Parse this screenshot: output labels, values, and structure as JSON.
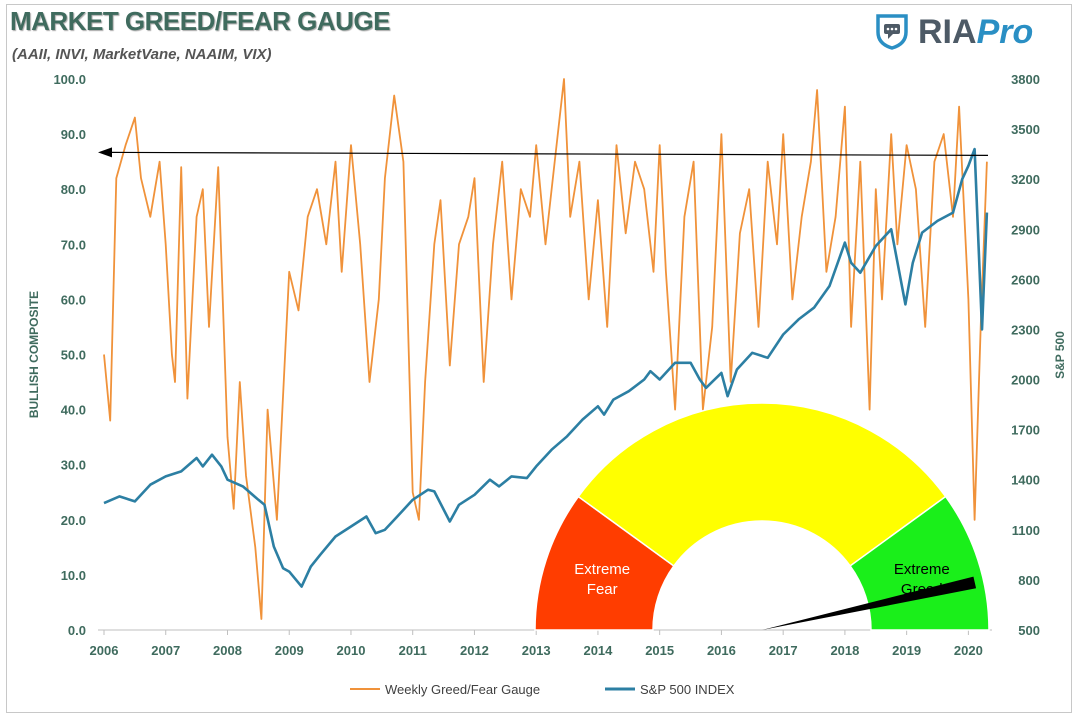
{
  "header": {
    "title": "MARKET GREED/FEAR GAUGE",
    "subtitle": "(AAII, INVI, MarketVane, NAAIM, VIX)"
  },
  "logo": {
    "icon": "shield-chat-icon",
    "brand": "RIA",
    "product": "Pro",
    "brand_color": "#4d5a66",
    "product_color": "#2a8fc4"
  },
  "chart_data": {
    "type": "line",
    "title": "MARKET GREED/FEAR GAUGE",
    "subtitle": "(AAII, INVI, MarketVane, NAAIM, VIX)",
    "xlabel": "",
    "ylabel": "BULLISH COMPOSITE",
    "y2label": "S&P 500",
    "x_ticks": [
      "2006",
      "2007",
      "2008",
      "2009",
      "2010",
      "2011",
      "2012",
      "2013",
      "2014",
      "2015",
      "2016",
      "2017",
      "2018",
      "2019",
      "2020"
    ],
    "ylim": [
      0,
      100
    ],
    "y_ticks": [
      "0.0",
      "10.0",
      "20.0",
      "30.0",
      "40.0",
      "50.0",
      "60.0",
      "70.0",
      "80.0",
      "90.0",
      "100.0"
    ],
    "y2lim": [
      500,
      3800
    ],
    "y2_ticks": [
      "500",
      "800",
      "1100",
      "1400",
      "1700",
      "2000",
      "2300",
      "2600",
      "2900",
      "3200",
      "3500",
      "3800"
    ],
    "grid": false,
    "legend_position": "bottom",
    "series": [
      {
        "name": "Weekly Greed/Fear Gauge",
        "axis": "left",
        "color": "#f0923a",
        "x": [
          2006.0,
          2006.1,
          2006.2,
          2006.35,
          2006.5,
          2006.6,
          2006.75,
          2006.9,
          2007.0,
          2007.1,
          2007.15,
          2007.25,
          2007.35,
          2007.5,
          2007.6,
          2007.7,
          2007.85,
          2008.0,
          2008.1,
          2008.2,
          2008.3,
          2008.45,
          2008.55,
          2008.65,
          2008.8,
          2009.0,
          2009.15,
          2009.3,
          2009.45,
          2009.6,
          2009.75,
          2009.85,
          2010.0,
          2010.15,
          2010.3,
          2010.45,
          2010.55,
          2010.7,
          2010.85,
          2011.0,
          2011.1,
          2011.2,
          2011.35,
          2011.45,
          2011.6,
          2011.75,
          2011.9,
          2012.0,
          2012.15,
          2012.3,
          2012.45,
          2012.6,
          2012.75,
          2012.9,
          2013.0,
          2013.15,
          2013.3,
          2013.45,
          2013.55,
          2013.7,
          2013.85,
          2014.0,
          2014.15,
          2014.3,
          2014.45,
          2014.6,
          2014.75,
          2014.9,
          2015.0,
          2015.1,
          2015.25,
          2015.4,
          2015.55,
          2015.7,
          2015.85,
          2016.0,
          2016.15,
          2016.3,
          2016.45,
          2016.6,
          2016.75,
          2016.9,
          2017.0,
          2017.15,
          2017.3,
          2017.45,
          2017.55,
          2017.7,
          2017.85,
          2018.0,
          2018.1,
          2018.25,
          2018.4,
          2018.5,
          2018.6,
          2018.75,
          2018.85,
          2019.0,
          2019.15,
          2019.3,
          2019.45,
          2019.6,
          2019.75,
          2019.85,
          2020.0,
          2020.1,
          2020.2,
          2020.3
        ],
        "values": [
          50,
          38,
          82,
          88,
          93,
          82,
          75,
          85,
          70,
          50,
          45,
          84,
          42,
          75,
          80,
          55,
          84,
          35,
          22,
          45,
          28,
          15,
          2,
          40,
          20,
          65,
          58,
          75,
          80,
          70,
          85,
          65,
          88,
          70,
          45,
          60,
          82,
          97,
          85,
          25,
          20,
          45,
          70,
          78,
          48,
          70,
          75,
          82,
          45,
          70,
          85,
          60,
          80,
          75,
          88,
          70,
          85,
          100,
          75,
          85,
          60,
          78,
          55,
          88,
          72,
          85,
          80,
          65,
          88,
          65,
          40,
          75,
          85,
          40,
          55,
          90,
          45,
          72,
          80,
          55,
          85,
          70,
          90,
          60,
          75,
          85,
          98,
          65,
          75,
          95,
          55,
          85,
          40,
          80,
          60,
          90,
          70,
          88,
          80,
          55,
          85,
          90,
          75,
          95,
          60,
          20,
          55,
          85
        ],
        "label_points": [
          2006.7,
          2007.6,
          2008.6,
          2009.6,
          2010.6,
          2011.4,
          2012.5,
          2013.5,
          2014.5,
          2015.4,
          2016.5,
          2017.5,
          2018.5,
          2019.5
        ]
      },
      {
        "name": "S&P 500 INDEX",
        "axis": "right",
        "color": "#2c7fa3",
        "x": [
          2006.0,
          2006.25,
          2006.5,
          2006.75,
          2007.0,
          2007.25,
          2007.5,
          2007.6,
          2007.75,
          2007.9,
          2008.0,
          2008.25,
          2008.5,
          2008.6,
          2008.75,
          2008.9,
          2009.0,
          2009.2,
          2009.35,
          2009.5,
          2009.75,
          2010.0,
          2010.25,
          2010.4,
          2010.55,
          2010.75,
          2011.0,
          2011.25,
          2011.35,
          2011.6,
          2011.75,
          2012.0,
          2012.25,
          2012.4,
          2012.6,
          2012.85,
          2013.0,
          2013.25,
          2013.5,
          2013.75,
          2014.0,
          2014.1,
          2014.25,
          2014.5,
          2014.75,
          2014.85,
          2015.0,
          2015.25,
          2015.5,
          2015.65,
          2015.75,
          2016.0,
          2016.1,
          2016.25,
          2016.5,
          2016.75,
          2017.0,
          2017.25,
          2017.5,
          2017.75,
          2018.0,
          2018.1,
          2018.25,
          2018.5,
          2018.75,
          2018.98,
          2019.1,
          2019.25,
          2019.5,
          2019.75,
          2019.9,
          2020.0,
          2020.1,
          2020.22,
          2020.3
        ],
        "values": [
          1260,
          1300,
          1270,
          1370,
          1420,
          1450,
          1530,
          1480,
          1550,
          1480,
          1400,
          1360,
          1280,
          1250,
          1000,
          870,
          850,
          760,
          880,
          950,
          1060,
          1120,
          1180,
          1080,
          1100,
          1180,
          1280,
          1340,
          1330,
          1150,
          1250,
          1310,
          1400,
          1360,
          1420,
          1410,
          1480,
          1580,
          1660,
          1760,
          1840,
          1790,
          1880,
          1930,
          2000,
          2050,
          2000,
          2100,
          2100,
          2000,
          1950,
          2040,
          1900,
          2060,
          2160,
          2130,
          2270,
          2360,
          2430,
          2560,
          2820,
          2700,
          2640,
          2800,
          2900,
          2450,
          2700,
          2880,
          2950,
          3000,
          3200,
          3280,
          3380,
          2300,
          3000
        ],
        "label_points": []
      }
    ],
    "reference_line": {
      "type": "arrow",
      "y": 86.5,
      "direction": "left"
    },
    "gauge": {
      "type": "gauge",
      "segments": [
        {
          "label_line1": "Extreme",
          "label_line2": "Fear",
          "color": "#ff3d00",
          "from": 0.0,
          "to": 0.2,
          "text_color": "#ffffff"
        },
        {
          "label_line1": "",
          "label_line2": "",
          "color": "#ffff00",
          "from": 0.2,
          "to": 0.8,
          "text_color": "#000000"
        },
        {
          "label_line1": "Extreme",
          "label_line2": "Greed",
          "color": "#1aef1a",
          "from": 0.8,
          "to": 1.0,
          "text_color": "#000000"
        }
      ],
      "needle_value": 0.93,
      "needle_color": "#000000"
    }
  },
  "legend": {
    "items": [
      {
        "label": "Weekly Greed/Fear Gauge",
        "color": "#f0923a"
      },
      {
        "label": "S&P 500 INDEX",
        "color": "#2c7fa3"
      }
    ]
  }
}
